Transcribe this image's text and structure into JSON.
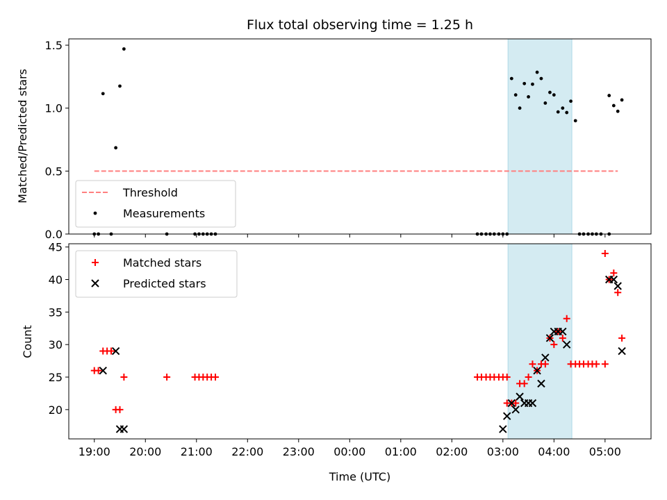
{
  "chart_data": [
    {
      "type": "scatter",
      "title": "Flux total observing time = 1.25 h",
      "xlabel": "",
      "ylabel": "Matched/Predicted stars",
      "ylim": [
        0,
        1.55
      ],
      "yticks": [
        0.0,
        0.5,
        1.0,
        1.5
      ],
      "ytick_labels": [
        "0.0",
        "0.5",
        "1.0",
        "1.5"
      ],
      "legend": "bottom-left",
      "highlight_band": {
        "from": 8.1,
        "to": 9.35,
        "color": "#d4ebf2"
      },
      "series": [
        {
          "name": "Threshold",
          "style": "dashed-line",
          "color": "#ff7f7f",
          "points": [
            [
              0.0,
              0.5
            ],
            [
              10.25,
              0.5
            ]
          ]
        },
        {
          "name": "Measurements",
          "style": "dot",
          "color": "#000000",
          "points": [
            [
              0.0,
              0.0
            ],
            [
              0.08,
              0.0
            ],
            [
              0.17,
              1.115
            ],
            [
              0.33,
              0.0
            ],
            [
              0.42,
              0.685
            ],
            [
              0.5,
              1.175
            ],
            [
              0.58,
              1.47
            ],
            [
              1.42,
              0.0
            ],
            [
              1.97,
              0.0
            ],
            [
              2.05,
              0.0
            ],
            [
              2.13,
              0.0
            ],
            [
              2.21,
              0.0
            ],
            [
              2.29,
              0.0
            ],
            [
              2.37,
              0.0
            ],
            [
              7.5,
              0.0
            ],
            [
              7.58,
              0.0
            ],
            [
              7.67,
              0.0
            ],
            [
              7.75,
              0.0
            ],
            [
              7.83,
              0.0
            ],
            [
              7.92,
              0.0
            ],
            [
              8.0,
              0.0
            ],
            [
              8.08,
              0.0
            ],
            [
              8.17,
              1.235
            ],
            [
              8.25,
              1.105
            ],
            [
              8.33,
              1.0
            ],
            [
              8.42,
              1.195
            ],
            [
              8.5,
              1.09
            ],
            [
              8.58,
              1.19
            ],
            [
              8.67,
              1.285
            ],
            [
              8.75,
              1.235
            ],
            [
              8.83,
              1.04
            ],
            [
              8.92,
              1.125
            ],
            [
              9.0,
              1.105
            ],
            [
              9.08,
              0.97
            ],
            [
              9.17,
              1.0
            ],
            [
              9.25,
              0.965
            ],
            [
              9.33,
              1.055
            ],
            [
              9.42,
              0.9
            ],
            [
              9.5,
              0.0
            ],
            [
              9.58,
              0.0
            ],
            [
              9.67,
              0.0
            ],
            [
              9.75,
              0.0
            ],
            [
              9.83,
              0.0
            ],
            [
              9.92,
              0.0
            ],
            [
              10.08,
              0.0
            ],
            [
              10.08,
              1.1
            ],
            [
              10.17,
              1.02
            ],
            [
              10.25,
              0.975
            ],
            [
              10.33,
              1.065
            ]
          ]
        }
      ]
    },
    {
      "type": "scatter",
      "title": "",
      "xlabel": "Time (UTC)",
      "ylabel": "Count",
      "xlim": [
        -0.5,
        10.9
      ],
      "ylim": [
        15.5,
        45.5
      ],
      "xticks": [
        0,
        1,
        2,
        3,
        4,
        5,
        6,
        7,
        8,
        9,
        10
      ],
      "xtick_labels": [
        "19:00",
        "20:00",
        "21:00",
        "22:00",
        "23:00",
        "00:00",
        "01:00",
        "02:00",
        "03:00",
        "04:00",
        "05:00"
      ],
      "yticks": [
        20,
        25,
        30,
        35,
        40,
        45
      ],
      "ytick_labels": [
        "20",
        "25",
        "30",
        "35",
        "40",
        "45"
      ],
      "legend": "top-left",
      "highlight_band": {
        "from": 8.1,
        "to": 9.35,
        "color": "#d4ebf2"
      },
      "series": [
        {
          "name": "Matched stars",
          "style": "plus",
          "color": "#ff0000",
          "points": [
            [
              0.0,
              26
            ],
            [
              0.08,
              26
            ],
            [
              0.17,
              29
            ],
            [
              0.25,
              29
            ],
            [
              0.33,
              29
            ],
            [
              0.42,
              20
            ],
            [
              0.5,
              20
            ],
            [
              0.58,
              25
            ],
            [
              1.42,
              25
            ],
            [
              1.97,
              25
            ],
            [
              2.05,
              25
            ],
            [
              2.13,
              25
            ],
            [
              2.21,
              25
            ],
            [
              2.29,
              25
            ],
            [
              2.37,
              25
            ],
            [
              7.5,
              25
            ],
            [
              7.58,
              25
            ],
            [
              7.67,
              25
            ],
            [
              7.75,
              25
            ],
            [
              7.83,
              25
            ],
            [
              7.92,
              25
            ],
            [
              8.0,
              25
            ],
            [
              8.08,
              25
            ],
            [
              8.08,
              21
            ],
            [
              8.17,
              21
            ],
            [
              8.25,
              21
            ],
            [
              8.33,
              24
            ],
            [
              8.42,
              24
            ],
            [
              8.5,
              25
            ],
            [
              8.58,
              27
            ],
            [
              8.67,
              26
            ],
            [
              8.75,
              27
            ],
            [
              8.83,
              27
            ],
            [
              8.92,
              31
            ],
            [
              9.0,
              30
            ],
            [
              9.08,
              32
            ],
            [
              9.17,
              31
            ],
            [
              9.25,
              34
            ],
            [
              9.33,
              27
            ],
            [
              9.42,
              27
            ],
            [
              9.5,
              27
            ],
            [
              9.58,
              27
            ],
            [
              9.67,
              27
            ],
            [
              9.75,
              27
            ],
            [
              9.83,
              27
            ],
            [
              10.0,
              27
            ],
            [
              10.0,
              44
            ],
            [
              10.08,
              40
            ],
            [
              10.17,
              41
            ],
            [
              10.25,
              38
            ],
            [
              10.33,
              31
            ]
          ]
        },
        {
          "name": "Predicted stars",
          "style": "x",
          "color": "#000000",
          "points": [
            [
              0.17,
              26
            ],
            [
              0.42,
              29
            ],
            [
              0.5,
              17
            ],
            [
              0.58,
              17
            ],
            [
              8.0,
              17
            ],
            [
              8.08,
              19
            ],
            [
              8.17,
              21
            ],
            [
              8.25,
              20
            ],
            [
              8.33,
              22
            ],
            [
              8.42,
              21
            ],
            [
              8.5,
              21
            ],
            [
              8.58,
              21
            ],
            [
              8.67,
              26
            ],
            [
              8.75,
              24
            ],
            [
              8.83,
              28
            ],
            [
              8.92,
              31
            ],
            [
              9.0,
              32
            ],
            [
              9.08,
              32
            ],
            [
              9.17,
              32
            ],
            [
              9.25,
              30
            ],
            [
              10.08,
              40
            ],
            [
              10.17,
              40
            ],
            [
              10.25,
              39
            ],
            [
              10.33,
              29
            ]
          ]
        }
      ]
    }
  ]
}
